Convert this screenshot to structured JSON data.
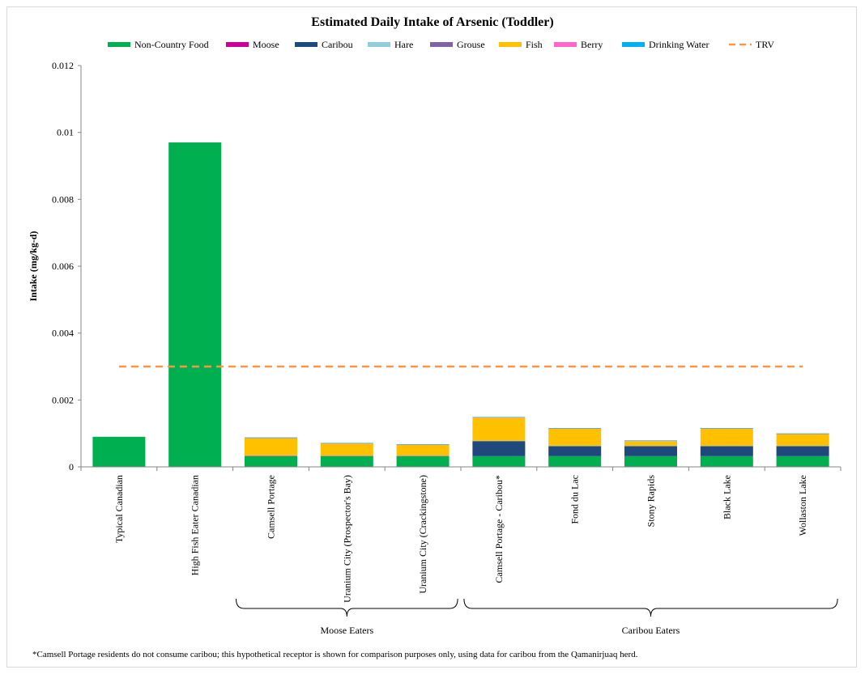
{
  "chart_data": {
    "type": "bar",
    "stacked": true,
    "title": "Estimated Daily Intake of Arsenic (Toddler)",
    "ylabel": "Intake (mg/kg-d)",
    "xlabel": "",
    "ylim": [
      0,
      0.012
    ],
    "yticks": [
      "0",
      "0.002",
      "0.004",
      "0.006",
      "0.008",
      "0.01",
      "0.012"
    ],
    "grid": false,
    "legend_position": "top",
    "categories": [
      "Typical Canadian",
      "High Fish Eater Canadian",
      "Camsell Portage",
      "Uranium City (Prospector's Bay)",
      "Uranium City (Crackingstone)",
      "Camsell Portage - Caribou*",
      "Fond du Lac",
      "Stony Rapids",
      "Black Lake",
      "Wollaston Lake"
    ],
    "series": [
      {
        "name": "Non-Country Food",
        "color": "#00b050",
        "values": [
          0.0009,
          0.0097,
          0.00032,
          0.00032,
          0.00032,
          0.00032,
          0.00032,
          0.00032,
          0.00032,
          0.00032
        ]
      },
      {
        "name": "Moose",
        "color": "#cc0099",
        "values": [
          0,
          0,
          1e-05,
          5e-06,
          5e-06,
          0,
          0,
          0,
          0,
          0
        ]
      },
      {
        "name": "Caribou",
        "color": "#1f497d",
        "values": [
          0,
          0,
          0,
          0,
          0,
          0.00045,
          0.0003,
          0.0003,
          0.0003,
          0.0003
        ]
      },
      {
        "name": "Hare",
        "color": "#92cddc",
        "values": [
          0,
          0,
          1e-05,
          1e-05,
          1e-05,
          1e-05,
          1e-05,
          1e-05,
          1e-05,
          1e-05
        ]
      },
      {
        "name": "Grouse",
        "color": "#8064a2",
        "values": [
          0,
          0,
          0,
          0,
          0,
          0,
          0,
          0,
          0,
          0
        ]
      },
      {
        "name": "Fish",
        "color": "#ffc000",
        "values": [
          0,
          0,
          0.00052,
          0.00036,
          0.00032,
          0.00069,
          0.00051,
          0.00014,
          0.00051,
          0.00035
        ]
      },
      {
        "name": "Berry",
        "color": "#ff66cc",
        "values": [
          0,
          0,
          5e-06,
          5e-06,
          5e-06,
          5e-06,
          5e-06,
          5e-06,
          5e-06,
          5e-06
        ]
      },
      {
        "name": "Drinking Water",
        "color": "#00b0f0",
        "values": [
          0,
          0,
          5e-06,
          5e-06,
          5e-06,
          5e-06,
          5e-06,
          5e-06,
          5e-06,
          5e-06
        ]
      }
    ],
    "reference_line": {
      "name": "TRV",
      "value": 0.003,
      "color": "#f79646",
      "style": "dashed"
    },
    "groups": [
      {
        "label": "Moose Eaters",
        "from": 2,
        "to": 4
      },
      {
        "label": "Caribou Eaters",
        "from": 5,
        "to": 9
      }
    ]
  },
  "footnote": "*Camsell Portage residents do not consume caribou; this hypothetical receptor is shown for comparison purposes only, using data for caribou from the Qamanirjuaq herd."
}
